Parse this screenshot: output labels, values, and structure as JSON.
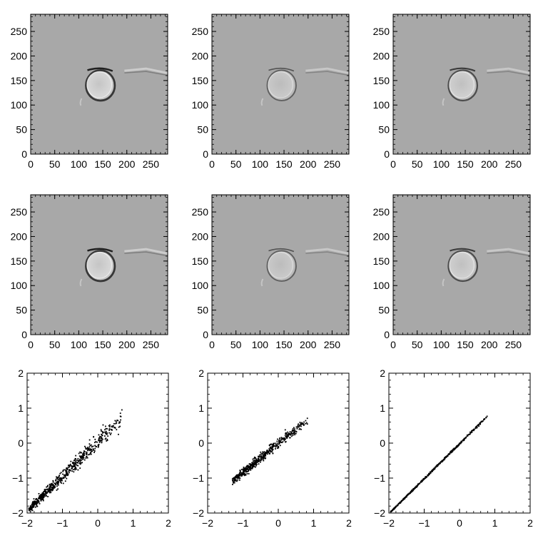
{
  "figure": {
    "background": "#ffffff",
    "axis_color": "#000000",
    "image_gray": "#a8a8a8"
  },
  "chart_data": [
    {
      "type": "heatmap",
      "panel": "row1-col1",
      "xlim": [
        0,
        285
      ],
      "ylim": [
        0,
        285
      ],
      "xticks": [
        "0",
        "50",
        "100",
        "150",
        "200",
        "250"
      ],
      "yticks": [
        "0",
        "50",
        "100",
        "150",
        "200",
        "250"
      ],
      "features": [
        {
          "kind": "ring",
          "cx": 145,
          "cy": 140,
          "r": 30,
          "contrast": "strong"
        },
        {
          "kind": "streak",
          "x": [
            195,
            285
          ],
          "y": [
            170,
            165
          ],
          "contrast": "moderate"
        }
      ]
    },
    {
      "type": "heatmap",
      "panel": "row1-col2",
      "xlim": [
        0,
        285
      ],
      "ylim": [
        0,
        285
      ],
      "xticks": [
        "0",
        "50",
        "100",
        "150",
        "200",
        "250"
      ],
      "yticks": [
        "0",
        "50",
        "100",
        "150",
        "200",
        "250"
      ],
      "features": [
        {
          "kind": "ring",
          "cx": 145,
          "cy": 140,
          "r": 30,
          "contrast": "weak"
        },
        {
          "kind": "streak",
          "x": [
            195,
            285
          ],
          "y": [
            170,
            165
          ],
          "contrast": "weak"
        }
      ]
    },
    {
      "type": "heatmap",
      "panel": "row1-col3",
      "xlim": [
        0,
        285
      ],
      "ylim": [
        0,
        285
      ],
      "xticks": [
        "0",
        "50",
        "100",
        "150",
        "200",
        "250"
      ],
      "yticks": [
        "0",
        "50",
        "100",
        "150",
        "200",
        "250"
      ],
      "features": [
        {
          "kind": "ring",
          "cx": 145,
          "cy": 140,
          "r": 30,
          "contrast": "moderate"
        },
        {
          "kind": "streak",
          "x": [
            195,
            285
          ],
          "y": [
            170,
            165
          ],
          "contrast": "weak"
        }
      ]
    },
    {
      "type": "heatmap",
      "panel": "row2-col1",
      "xlim": [
        0,
        285
      ],
      "ylim": [
        0,
        285
      ],
      "xticks": [
        "0",
        "50",
        "100",
        "150",
        "200",
        "250"
      ],
      "yticks": [
        "0",
        "50",
        "100",
        "150",
        "200",
        "250"
      ],
      "features": [
        {
          "kind": "ring",
          "cx": 145,
          "cy": 140,
          "r": 30,
          "contrast": "strong"
        },
        {
          "kind": "streak",
          "x": [
            195,
            285
          ],
          "y": [
            170,
            165
          ],
          "contrast": "moderate"
        }
      ]
    },
    {
      "type": "heatmap",
      "panel": "row2-col2",
      "xlim": [
        0,
        285
      ],
      "ylim": [
        0,
        285
      ],
      "xticks": [
        "0",
        "50",
        "100",
        "150",
        "200",
        "250"
      ],
      "yticks": [
        "0",
        "50",
        "100",
        "150",
        "200",
        "250"
      ],
      "features": [
        {
          "kind": "ring",
          "cx": 145,
          "cy": 140,
          "r": 30,
          "contrast": "weak"
        },
        {
          "kind": "streak",
          "x": [
            195,
            285
          ],
          "y": [
            170,
            165
          ],
          "contrast": "weak"
        }
      ]
    },
    {
      "type": "heatmap",
      "panel": "row2-col3",
      "xlim": [
        0,
        285
      ],
      "ylim": [
        0,
        285
      ],
      "xticks": [
        "0",
        "50",
        "100",
        "150",
        "200",
        "250"
      ],
      "yticks": [
        "0",
        "50",
        "100",
        "150",
        "200",
        "250"
      ],
      "features": [
        {
          "kind": "ring",
          "cx": 145,
          "cy": 140,
          "r": 30,
          "contrast": "moderate"
        },
        {
          "kind": "streak",
          "x": [
            195,
            285
          ],
          "y": [
            170,
            165
          ],
          "contrast": "weak"
        }
      ]
    },
    {
      "type": "scatter",
      "panel": "row3-col1",
      "xlim": [
        -2,
        2
      ],
      "ylim": [
        -2,
        2
      ],
      "xticks": [
        "-2",
        "-1",
        "0",
        "1",
        "2"
      ],
      "yticks": [
        "-2",
        "-1",
        "0",
        "1",
        "2"
      ],
      "cloud": {
        "x_range": [
          -1.95,
          0.7
        ],
        "slope": 0.98,
        "intercept": 0.02,
        "spread": 0.12,
        "n": 600
      }
    },
    {
      "type": "scatter",
      "panel": "row3-col2",
      "xlim": [
        -2,
        2
      ],
      "ylim": [
        -2,
        2
      ],
      "xticks": [
        "-2",
        "-1",
        "0",
        "1",
        "2"
      ],
      "yticks": [
        "-2",
        "-1",
        "0",
        "1",
        "2"
      ],
      "cloud": {
        "x_range": [
          -1.3,
          0.85
        ],
        "slope": 0.82,
        "intercept": -0.02,
        "spread": 0.08,
        "n": 500
      }
    },
    {
      "type": "scatter",
      "panel": "row3-col3",
      "xlim": [
        -2,
        2
      ],
      "ylim": [
        -2,
        2
      ],
      "xticks": [
        "-2",
        "-1",
        "0",
        "1",
        "2"
      ],
      "yticks": [
        "-2",
        "-1",
        "0",
        "1",
        "2"
      ],
      "cloud": {
        "x_range": [
          -1.95,
          0.8
        ],
        "slope": 1.0,
        "intercept": -0.02,
        "spread": 0.015,
        "n": 500
      }
    }
  ]
}
